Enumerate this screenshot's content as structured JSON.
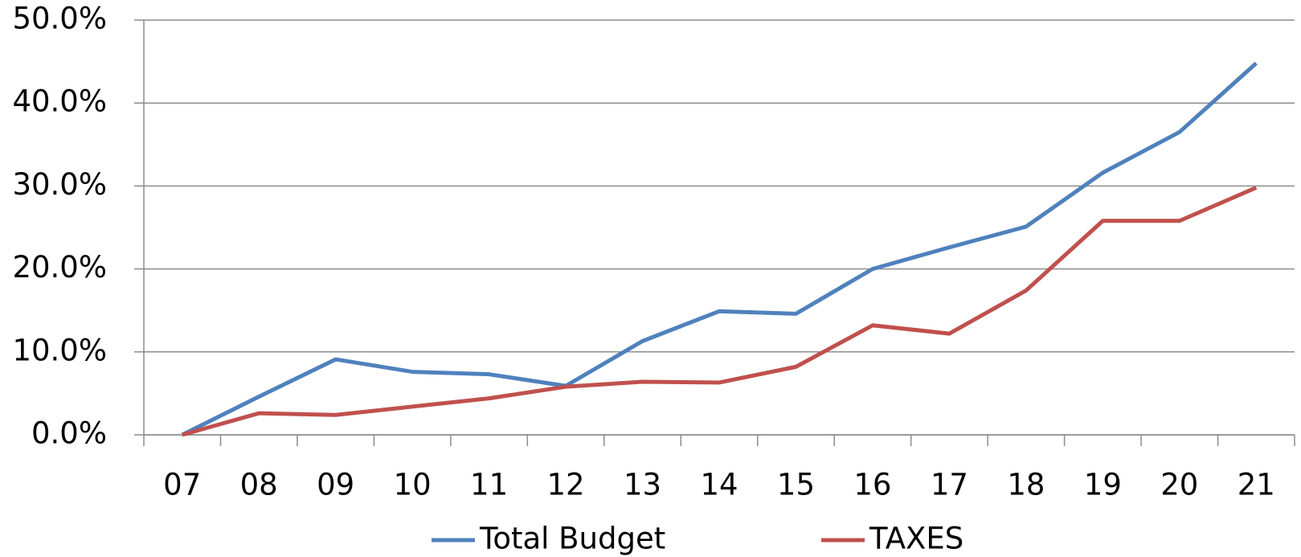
{
  "chart_data": {
    "type": "line",
    "categories": [
      "07",
      "08",
      "09",
      "10",
      "11",
      "12",
      "13",
      "14",
      "15",
      "16",
      "17",
      "18",
      "19",
      "20",
      "21"
    ],
    "series": [
      {
        "name": "Total Budget",
        "color": "#4f81bd",
        "values": [
          0,
          4.6,
          9.1,
          7.6,
          7.3,
          5.9,
          11.3,
          14.9,
          14.6,
          20.0,
          22.6,
          25.1,
          31.6,
          36.5,
          44.8
        ]
      },
      {
        "name": "TAXES",
        "color": "#c0504d",
        "values": [
          0,
          2.6,
          2.4,
          3.4,
          4.4,
          5.8,
          6.4,
          6.3,
          8.2,
          13.2,
          12.2,
          17.4,
          25.8,
          25.8,
          29.8
        ]
      }
    ],
    "ylim": [
      0,
      50
    ],
    "yticks": [
      {
        "value": 0,
        "label": "0.0%"
      },
      {
        "value": 10,
        "label": "10.0%"
      },
      {
        "value": 20,
        "label": "20.0%"
      },
      {
        "value": 30,
        "label": "30.0%"
      },
      {
        "value": 40,
        "label": "40.0%"
      },
      {
        "value": 50,
        "label": "50.0%"
      }
    ],
    "grid": true,
    "legend": "bottom"
  }
}
